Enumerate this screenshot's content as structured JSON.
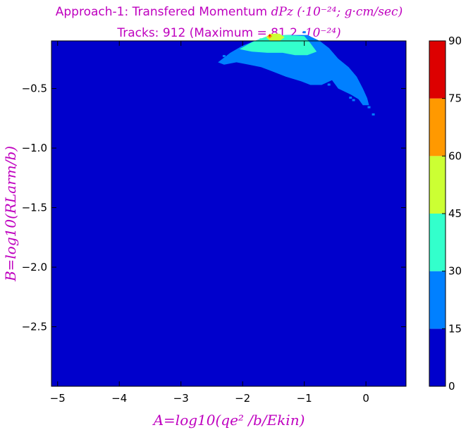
{
  "chart_data": {
    "type": "heatmap",
    "subtype": "filled-contour",
    "title_line1": {
      "prefix": "Approach-1: Transfered Momentum ",
      "math": "dPz (·10⁻²⁴; g·cm/sec)"
    },
    "title_line2": {
      "prefix": "Tracks: 912 (Maximum =  81.2 ",
      "math": "·10⁻²⁴)"
    },
    "xlabel": "A=log10(qe² /b/Ekin)",
    "ylabel": "B=log10(RLarm/b)",
    "xlim": [
      -5.1,
      0.65
    ],
    "ylim": [
      -3.0,
      -0.1
    ],
    "x_ticks": [
      -5,
      -4,
      -3,
      -2,
      -1,
      0
    ],
    "x_tick_labels": [
      "−5",
      "−4",
      "−3",
      "−2",
      "−1",
      "0"
    ],
    "y_ticks": [
      -0.5,
      -1.0,
      -1.5,
      -2.0,
      -2.5
    ],
    "y_tick_labels": [
      "−0.5",
      "−1.0",
      "−1.5",
      "−2.0",
      "−2.5"
    ],
    "colorbar": {
      "levels": [
        0,
        15,
        30,
        45,
        60,
        75,
        90
      ],
      "tick_labels": [
        "0",
        "15",
        "30",
        "45",
        "60",
        "75",
        "90"
      ],
      "colors": [
        "#0000cc",
        "#0080ff",
        "#33ffcc",
        "#ccff33",
        "#ff9900",
        "#dd0000"
      ]
    },
    "maximum": 81.2,
    "tracks": 912,
    "regions": [
      {
        "level_range": [
          15,
          30
        ],
        "color": "#0080ff",
        "outline": [
          [
            -2.4,
            -0.28
          ],
          [
            -2.2,
            -0.2
          ],
          [
            -2.0,
            -0.14
          ],
          [
            -1.7,
            -0.08
          ],
          [
            -1.3,
            -0.05
          ],
          [
            -0.95,
            -0.05
          ],
          [
            -0.75,
            -0.1
          ],
          [
            -0.6,
            -0.16
          ],
          [
            -0.45,
            -0.25
          ],
          [
            -0.28,
            -0.32
          ],
          [
            -0.15,
            -0.4
          ],
          [
            -0.05,
            -0.5
          ],
          [
            0.02,
            -0.58
          ],
          [
            0.05,
            -0.64
          ],
          [
            -0.05,
            -0.64
          ],
          [
            -0.12,
            -0.59
          ],
          [
            -0.25,
            -0.55
          ],
          [
            -0.45,
            -0.5
          ],
          [
            -0.55,
            -0.43
          ],
          [
            -0.72,
            -0.47
          ],
          [
            -0.9,
            -0.47
          ],
          [
            -1.05,
            -0.44
          ],
          [
            -1.3,
            -0.4
          ],
          [
            -1.5,
            -0.36
          ],
          [
            -1.7,
            -0.32
          ],
          [
            -1.9,
            -0.3
          ],
          [
            -2.1,
            -0.28
          ],
          [
            -2.3,
            -0.3
          ]
        ]
      },
      {
        "level_range": [
          30,
          45
        ],
        "color": "#33ffcc",
        "outline": [
          [
            -2.05,
            -0.17
          ],
          [
            -1.85,
            -0.11
          ],
          [
            -1.6,
            -0.06
          ],
          [
            -1.3,
            -0.05
          ],
          [
            -1.0,
            -0.06
          ],
          [
            -0.9,
            -0.12
          ],
          [
            -0.8,
            -0.19
          ],
          [
            -0.95,
            -0.22
          ],
          [
            -1.15,
            -0.22
          ],
          [
            -1.35,
            -0.2
          ],
          [
            -1.6,
            -0.2
          ],
          [
            -1.85,
            -0.19
          ]
        ]
      },
      {
        "level_range": [
          45,
          60
        ],
        "color": "#ccff33",
        "outline": [
          [
            -1.62,
            -0.07
          ],
          [
            -1.55,
            -0.04
          ],
          [
            -1.4,
            -0.04
          ],
          [
            -1.32,
            -0.07
          ],
          [
            -1.4,
            -0.1
          ],
          [
            -1.55,
            -0.1
          ]
        ]
      },
      {
        "level_range": [
          60,
          75
        ],
        "color": "#ff9900",
        "outline": [
          [
            -1.6,
            -0.06
          ],
          [
            -1.56,
            -0.04
          ],
          [
            -1.52,
            -0.06
          ],
          [
            -1.56,
            -0.08
          ]
        ]
      },
      {
        "level_range": [
          75,
          90
        ],
        "color": "#dd0000",
        "outline": [
          [
            -1.575,
            -0.055
          ],
          [
            -1.56,
            -0.045
          ],
          [
            -1.545,
            -0.055
          ],
          [
            -1.56,
            -0.065
          ]
        ]
      }
    ],
    "specks": [
      {
        "x": -2.3,
        "y": -0.23,
        "color": "#0080ff"
      },
      {
        "x": -2.2,
        "y": -0.27,
        "color": "#0080ff"
      },
      {
        "x": -1.0,
        "y": -0.03,
        "color": "#0080ff"
      },
      {
        "x": -0.25,
        "y": -0.58,
        "color": "#0080ff"
      },
      {
        "x": -0.2,
        "y": -0.6,
        "color": "#0080ff"
      },
      {
        "x": 0.05,
        "y": -0.66,
        "color": "#0080ff"
      },
      {
        "x": 0.12,
        "y": -0.72,
        "color": "#0080ff"
      },
      {
        "x": -0.6,
        "y": -0.47,
        "color": "#0080ff"
      },
      {
        "x": -1.7,
        "y": -0.09,
        "color": "#33ffcc"
      },
      {
        "x": -1.45,
        "y": -0.05,
        "color": "#ccff33"
      },
      {
        "x": -1.1,
        "y": -0.1,
        "color": "#33ffcc"
      }
    ]
  }
}
